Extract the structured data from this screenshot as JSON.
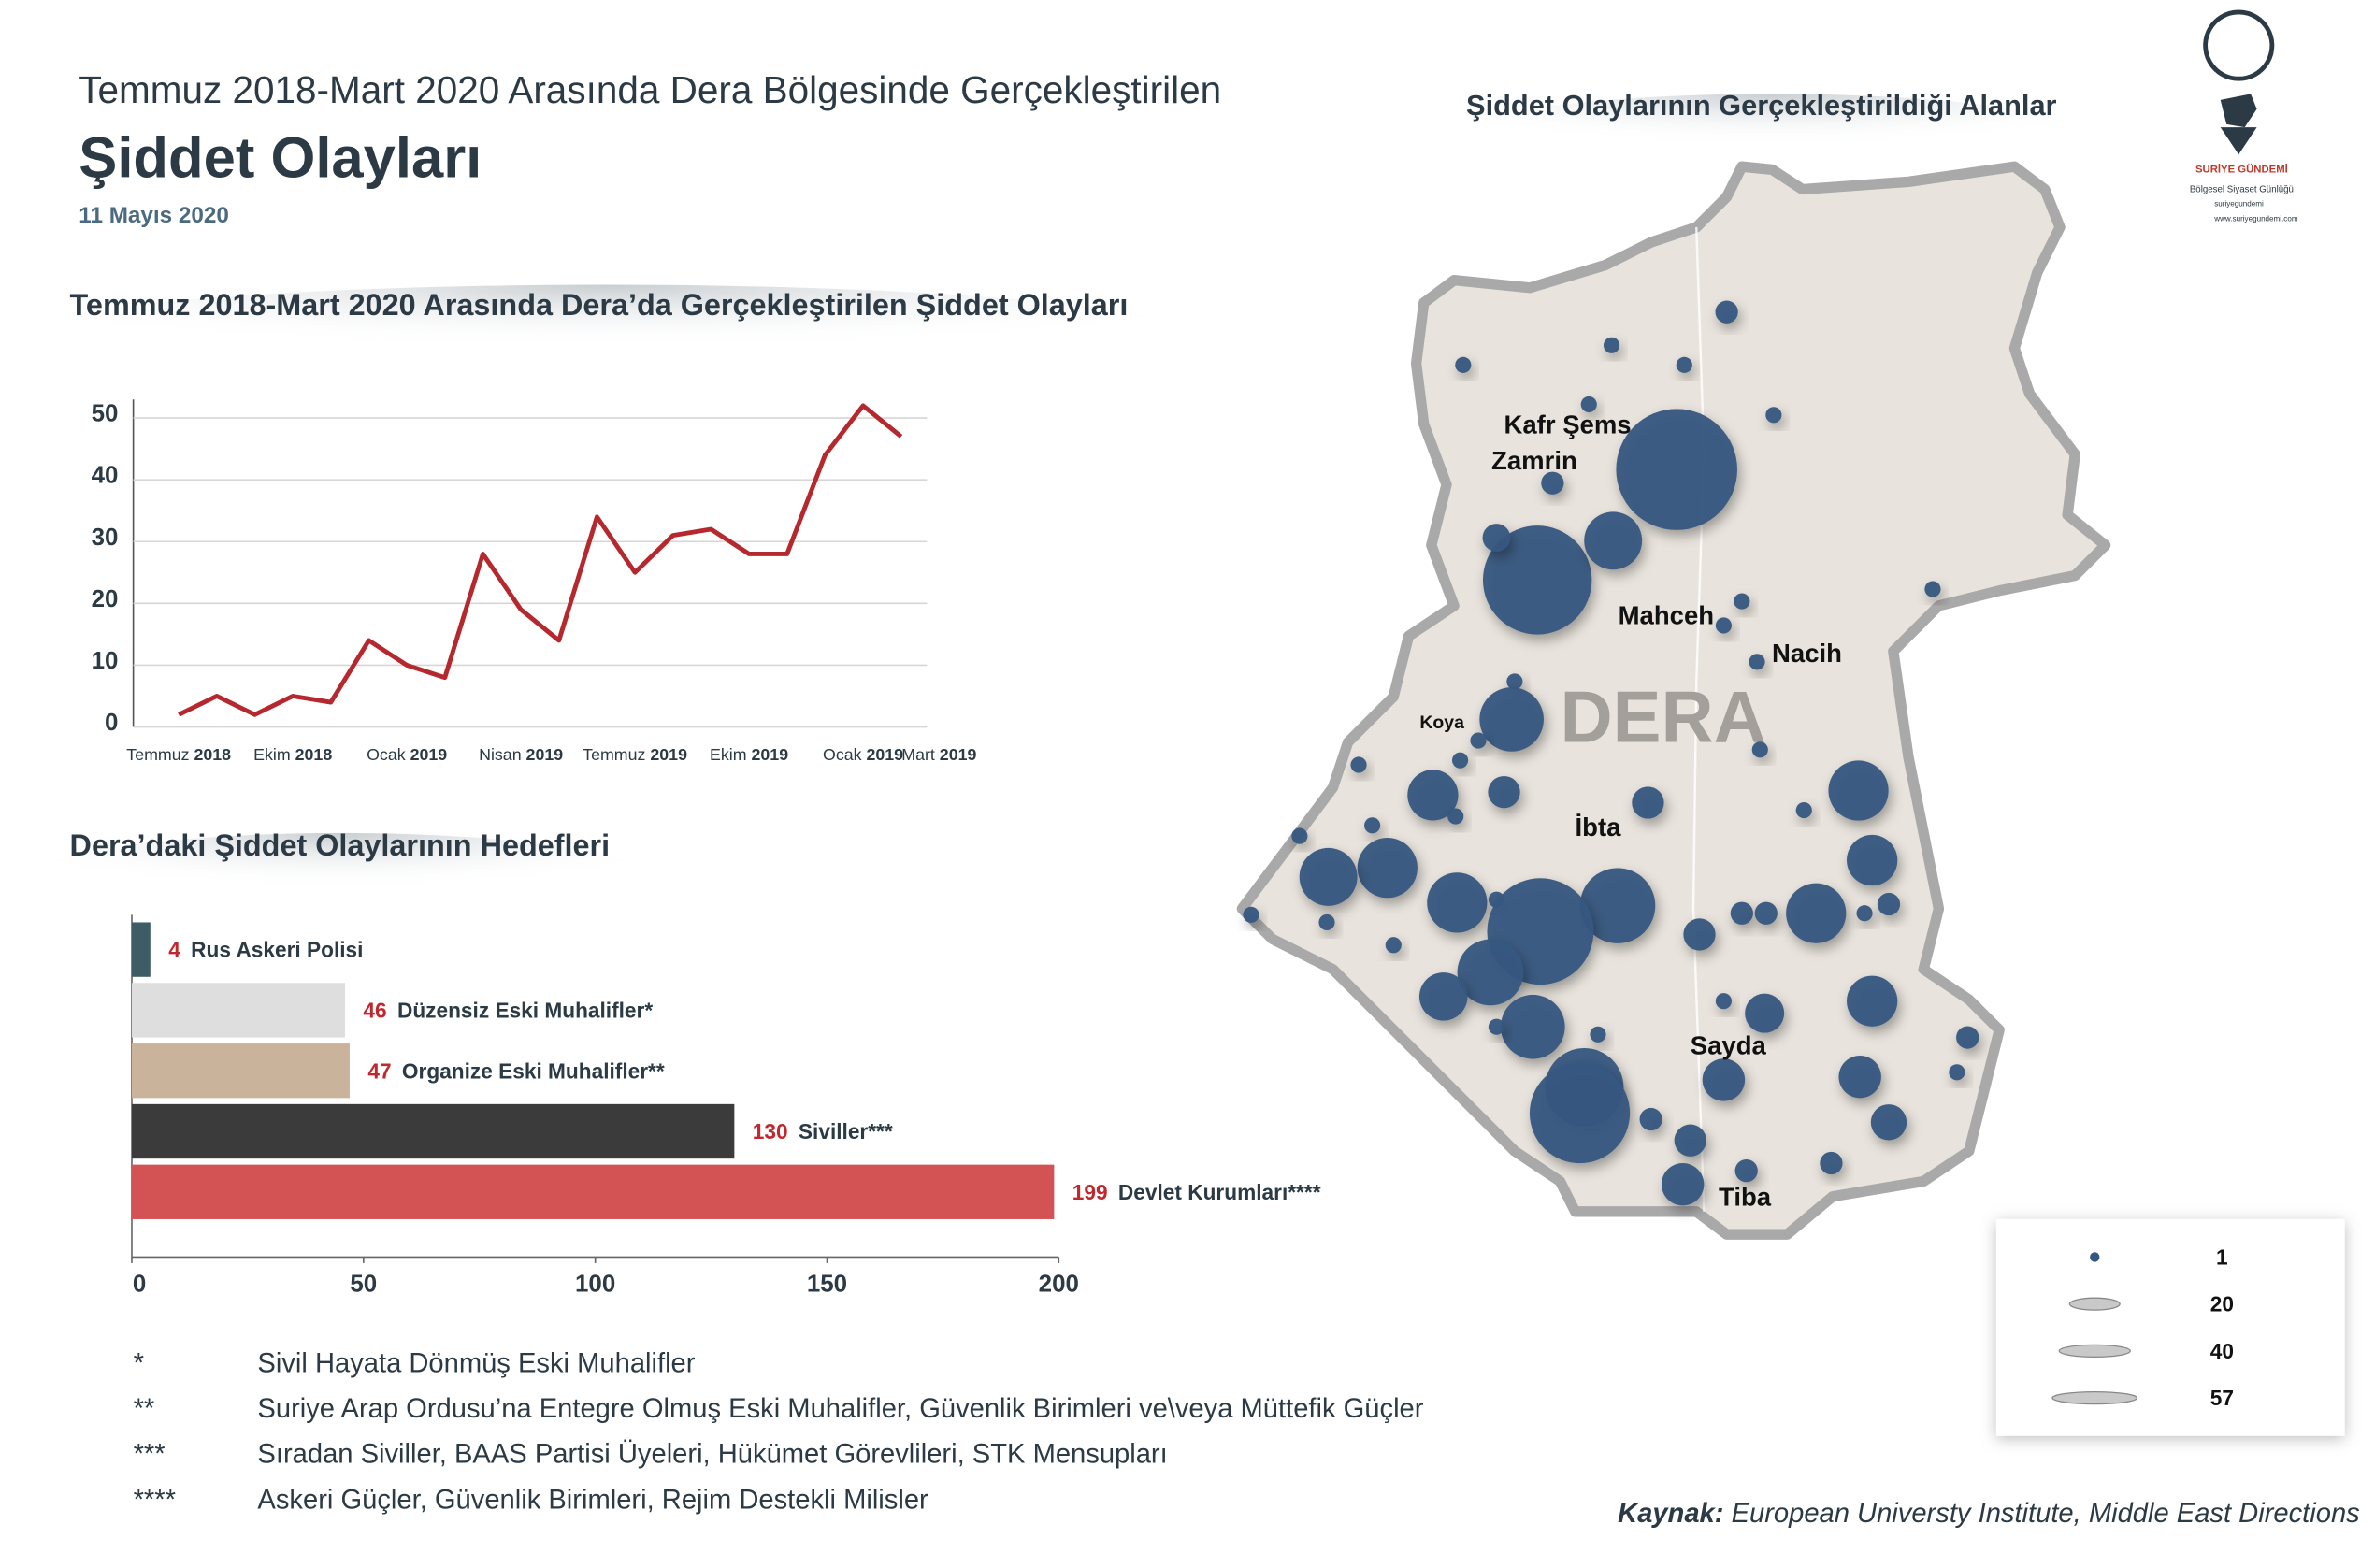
{
  "header": {
    "title_line1": "Temmuz 2018-Mart 2020 Arasında Dera Bölgesinde Gerçekleştirilen",
    "title_line2": "Şiddet Olayları",
    "date": "11 Mayıs 2020"
  },
  "logo": {
    "name": "SURİYE GÜNDEMİ",
    "tagline": "Bölgesel Siyaset Günlüğü",
    "handle": "suriyegundemi",
    "website": "www.suriyegundemi.com"
  },
  "chart_data": [
    {
      "type": "line",
      "title": "Temmuz 2018-Mart 2020 Arasında Dera’da Gerçekleştirilen Şiddet Olayları",
      "categories": [
        "Temmuz 2018",
        null,
        null,
        "Ekim 2018",
        null,
        null,
        "Ocak 2019",
        null,
        null,
        "Nisan 2019",
        null,
        null,
        "Temmuz 2019",
        null,
        null,
        "Ekim 2019",
        null,
        null,
        "Ocak 2019",
        null,
        "Mart 2019"
      ],
      "values": [
        2,
        5,
        2,
        5,
        4,
        14,
        10,
        8,
        28,
        19,
        14,
        34,
        25,
        31,
        32,
        28,
        28,
        44,
        52,
        47,
        null
      ],
      "color": "#b5282e",
      "ylim": [
        0,
        53
      ],
      "yticks": [
        0,
        10,
        20,
        30,
        40,
        50
      ],
      "grid": true
    },
    {
      "type": "hbar",
      "title": "Dera’daki Şiddet Olaylarının Hedefleri",
      "categories": [
        "Rus Askeri Polisi",
        "Düzensiz Eski Muhalifler*",
        "Organize Eski Muhalifler**",
        "Siviller***",
        "Devlet Kurumları****"
      ],
      "values": [
        4,
        46,
        47,
        130,
        199
      ],
      "colors": [
        "#3e5c66",
        "#dedede",
        "#c9b39b",
        "#3b3b3b",
        "#d35355"
      ],
      "xlim": [
        0,
        200
      ],
      "xticks": [
        0,
        50,
        100,
        150,
        200
      ]
    },
    {
      "type": "bubble-map",
      "title": "Şiddet Olaylarının Gerçekleştirildiği Alanlar",
      "region_label": "DERA",
      "places": [
        "Kafr Şems",
        "Zamrin",
        "Mahceh",
        "Nacih",
        "Koya",
        "İbta",
        "Sayda",
        "Tiba"
      ],
      "values": [
        2,
        1,
        1,
        1,
        1,
        1,
        57,
        2,
        46,
        13,
        3,
        1,
        1,
        1,
        1,
        1,
        16,
        1,
        1,
        1,
        10,
        1,
        4,
        4,
        1,
        14,
        1,
        1,
        1,
        14,
        13,
        1,
        1,
        14,
        1,
        22,
        44,
        10,
        4,
        2,
        2,
        14,
        1,
        2,
        1,
        17,
        9,
        16,
        1,
        1,
        1,
        6,
        10,
        24,
        39,
        7,
        7,
        2,
        1,
        2,
        4,
        5,
        2,
        2,
        7
      ],
      "color": "#35577f",
      "legend": [
        1,
        20,
        40,
        57
      ]
    }
  ],
  "footnotes": [
    {
      "mark": "*",
      "text": "Sivil Hayata Dönmüş Eski Muhalifler"
    },
    {
      "mark": "**",
      "text": "Suriye Arap Ordusu’na Entegre Olmuş Eski Muhalifler, Güvenlik Birimleri ve\\veya Müttefik Güçler"
    },
    {
      "mark": "***",
      "text": "Sıradan Siviller, BAAS Partisi Üyeleri, Hükümet Görevlileri, STK Mensupları"
    },
    {
      "mark": "****",
      "text": "Askeri Güçler, Güvenlik Birimleri, Rejim Destekli Milisler"
    }
  ],
  "source": {
    "label": "Kaynak:",
    "text": "European Universty Institute, Middle East Directions"
  }
}
